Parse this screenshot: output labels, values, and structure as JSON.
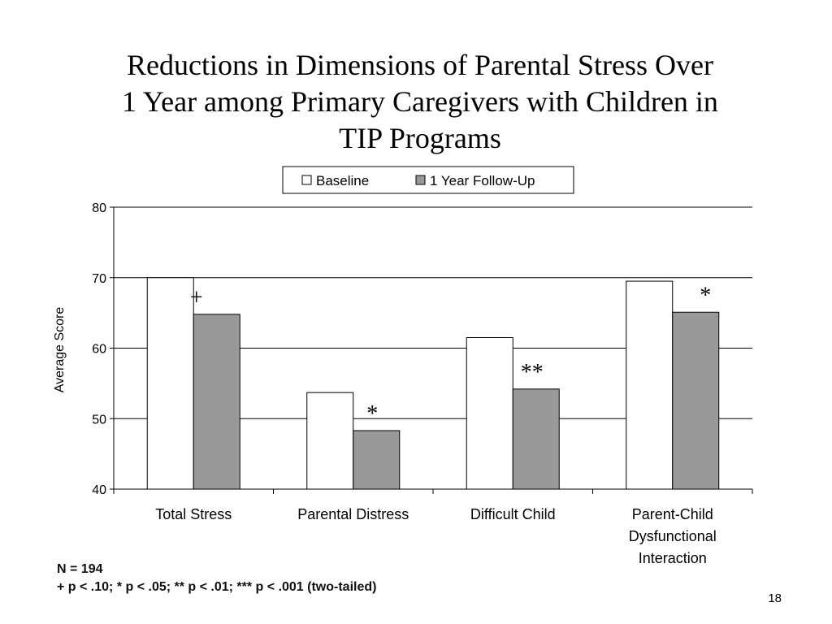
{
  "slide": {
    "title_lines": [
      "Reductions in Dimensions of Parental Stress Over",
      "1 Year among Primary Caregivers with Children in",
      "TIP Programs"
    ],
    "footnote_lines": [
      "N = 194",
      "+ p < .10; * p < .05; ** p < .01; *** p < .001 (two-tailed)"
    ],
    "page_number": "18"
  },
  "chart_data": {
    "type": "bar",
    "ylabel": "Average Score",
    "xlabel": "",
    "ylim": [
      40,
      80
    ],
    "yticks": [
      40,
      50,
      60,
      70,
      80
    ],
    "grid": true,
    "legend_position": "top-center",
    "categories": [
      [
        "Total Stress"
      ],
      [
        "Parental Distress"
      ],
      [
        "Difficult Child"
      ],
      [
        "Parent-Child",
        "Dysfunctional",
        "Interaction"
      ]
    ],
    "series": [
      {
        "name": "Baseline",
        "color": "#ffffff",
        "values": [
          70.0,
          53.7,
          61.5,
          69.5
        ]
      },
      {
        "name": "1 Year Follow-Up",
        "color": "#999999",
        "values": [
          64.8,
          48.3,
          54.2,
          65.1
        ]
      }
    ],
    "significance_markers": [
      "+",
      "*",
      "**",
      "*"
    ]
  }
}
